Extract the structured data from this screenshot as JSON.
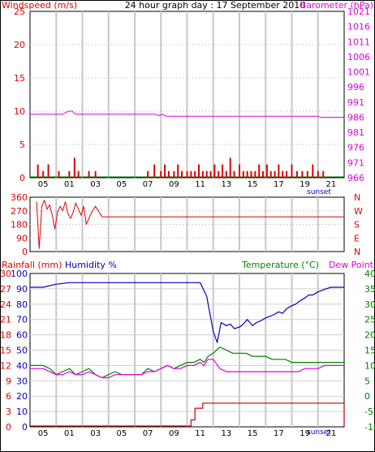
{
  "chart_data": [
    {
      "type": "line",
      "title": "24 hour graph day : 17 September 2010",
      "left_axis_label": "Windspeed (m/s)",
      "right_axis_label": "Barometer (hPa)",
      "left_ylim": [
        0,
        25
      ],
      "left_ticks": [
        "25",
        "20",
        "15",
        "10",
        "5",
        "0"
      ],
      "right_ylim": [
        966,
        1021
      ],
      "right_ticks": [
        "1021",
        "1016",
        "1011",
        "1006",
        "1001",
        "996",
        "991",
        "986",
        "981",
        "976",
        "971",
        "966"
      ],
      "x_ticks": [
        "05",
        "01",
        "03",
        "05",
        "07",
        "09",
        "11",
        "13",
        "15",
        "17",
        "19",
        "21"
      ],
      "annotation": "sunset",
      "grid": true,
      "colors": {
        "windspeed": "#e00000",
        "barometer": "#e000e0",
        "gust_line": "#008000",
        "text_left": "#e00000",
        "text_right": "#e000e0"
      },
      "series": [
        {
          "name": "Windspeed (m/s)",
          "kind": "bars",
          "x": [
            0.3,
            0.6,
            1.0,
            1.4,
            2.2,
            2.6,
            3.0,
            3.4,
            3.7,
            4.5,
            5.0,
            9.0,
            9.5,
            10.0,
            10.3,
            10.6,
            11.0,
            11.3,
            11.6,
            12.0,
            12.3,
            12.6,
            12.9,
            13.2,
            13.5,
            13.8,
            14.1,
            14.4,
            14.7,
            15.0,
            15.3,
            15.6,
            16.0,
            16.3,
            16.6,
            16.9,
            17.2,
            17.5,
            17.8,
            18.1,
            18.4,
            18.7,
            19.0,
            19.3,
            19.6,
            20.0,
            20.4,
            20.8,
            21.2,
            21.6,
            22.0,
            22.4
          ],
          "values": [
            0,
            2,
            1,
            2,
            1,
            0,
            1,
            3,
            1,
            1,
            1,
            1,
            2,
            1,
            2,
            1,
            1,
            2,
            1,
            1,
            1,
            1,
            2,
            1,
            1,
            1,
            2,
            1,
            2,
            1,
            3,
            1,
            2,
            1,
            1,
            1,
            1,
            2,
            1,
            2,
            1,
            1,
            2,
            1,
            1,
            2,
            1,
            1,
            1,
            2,
            1,
            1
          ]
        },
        {
          "name": "Barometer (hPa)",
          "kind": "line",
          "x": [
            0,
            0.3,
            0.3,
            2.5,
            2.8,
            3.0,
            3.2,
            3.5,
            9.5,
            9.9,
            10.1,
            10.4,
            22.0,
            22.2,
            24,
            24
          ],
          "values": [
            987,
            987,
            987,
            987,
            987.7,
            988,
            988,
            987,
            987,
            986.5,
            987,
            986.3,
            986.3,
            986,
            986,
            986
          ]
        }
      ]
    },
    {
      "type": "line",
      "left_axis_label": "",
      "left_ylim": [
        0,
        360
      ],
      "left_ticks": [
        "360",
        "270",
        "180",
        "90",
        "0"
      ],
      "right_ticks": [
        "N",
        "W",
        "S",
        "E",
        "N"
      ],
      "x_ticks": [],
      "grid": true,
      "colors": {
        "direction": "#e00000"
      },
      "series": [
        {
          "name": "",
          "kind": "line",
          "x": [
            0.5,
            0.7,
            0.9,
            1.1,
            1.3,
            1.5,
            1.7,
            1.9,
            2.1,
            2.3,
            2.5,
            2.7,
            2.9,
            3.1,
            3.3,
            3.5,
            3.7,
            3.9,
            4.1,
            4.3,
            4.5,
            4.7,
            5.0,
            5.5,
            6.0,
            6.5,
            7.0,
            7.5,
            8.0,
            9.0,
            10.0,
            10.8,
            11.2,
            11.6,
            12.0,
            12.4,
            12.8,
            13.2,
            13.6,
            14.0,
            14.4,
            14.8,
            15.2,
            15.6,
            16.0,
            16.4,
            16.8,
            17.2,
            17.6,
            18.0,
            18.4,
            18.8,
            19.2,
            19.6,
            20.0,
            20.4,
            20.8,
            21.2,
            21.6,
            22.0,
            22.4,
            22.8,
            23.2,
            23.6,
            24.0
          ],
          "values": [
            330,
            20,
            300,
            340,
            280,
            310,
            240,
            150,
            260,
            300,
            270,
            330,
            250,
            220,
            260,
            320,
            280,
            240,
            300,
            180,
            220,
            260,
            300,
            230,
            230,
            230,
            230,
            230,
            230,
            230,
            230,
            230,
            230,
            230,
            230,
            230,
            230,
            230,
            230,
            230,
            230,
            230,
            230,
            230,
            230,
            230,
            230,
            230,
            230,
            230,
            230,
            230,
            230,
            230,
            230,
            230,
            230,
            230,
            230,
            230,
            230,
            230,
            230,
            230,
            230
          ]
        }
      ]
    },
    {
      "type": "line",
      "left_axis_labels": [
        "Rainfall (mm)",
        "Humidity %"
      ],
      "right_axis_labels": [
        "Temperature (°C)",
        "Dew Point"
      ],
      "left_ticks_rain": [
        "30",
        "27",
        "24",
        "21",
        "18",
        "15",
        "12",
        "9",
        "6",
        "3",
        "0"
      ],
      "left_ticks_humidity": [
        "100",
        "90",
        "80",
        "70",
        "60",
        "50",
        "40",
        "30",
        "20",
        "10",
        "0"
      ],
      "right_ticks": [
        "40",
        "35",
        "30",
        "25",
        "20",
        "15",
        "10",
        "5",
        "0",
        "-5",
        "-10"
      ],
      "humidity_ylim": [
        0,
        100
      ],
      "temperature_ylim": [
        -10,
        40
      ],
      "rain_ylim": [
        0,
        30
      ],
      "x_ticks": [
        "05",
        "01",
        "03",
        "05",
        "07",
        "09",
        "11",
        "13",
        "15",
        "17",
        "19",
        "21"
      ],
      "annotation": "sunset",
      "grid": true,
      "colors": {
        "rain": "#c00000",
        "humidity": "#0000c0",
        "temperature": "#008000",
        "dewpoint": "#e000e0",
        "text_rain": "#e00000",
        "text_humidity": "#0000c0",
        "text_temperature": "#008000",
        "text_dewpoint": "#e000e0"
      },
      "series": [
        {
          "name": "Humidity %",
          "kind": "line",
          "x": [
            0,
            0.5,
            1.0,
            1.5,
            2.0,
            3.0,
            5.0,
            8.0,
            10.0,
            11.0,
            12.0,
            13.0,
            13.5,
            14.0,
            14.3,
            14.6,
            15.0,
            15.3,
            15.6,
            16.0,
            16.3,
            16.6,
            17.0,
            17.3,
            17.6,
            18.0,
            18.3,
            18.6,
            19.0,
            19.3,
            19.6,
            20.0,
            20.3,
            20.6,
            21.0,
            21.3,
            21.6,
            22.0,
            22.3,
            22.6,
            23.0,
            23.5,
            24.0
          ],
          "values": [
            91,
            91,
            91,
            92,
            93,
            94,
            94,
            94,
            94,
            94,
            94,
            94,
            85,
            62,
            55,
            68,
            66,
            67,
            64,
            65,
            67,
            70,
            66,
            68,
            69,
            71,
            72,
            73,
            75,
            74,
            77,
            79,
            80,
            82,
            84,
            86,
            86,
            88,
            89,
            90,
            91,
            91,
            91
          ]
        },
        {
          "name": "Temperature (°C)",
          "kind": "line",
          "x": [
            0,
            1.0,
            1.5,
            2.0,
            2.5,
            3.0,
            3.5,
            4.0,
            4.5,
            5.0,
            5.5,
            6.0,
            6.5,
            7.0,
            7.5,
            8.0,
            8.5,
            9.0,
            9.5,
            10.0,
            10.5,
            11.0,
            11.5,
            12.0,
            12.5,
            13.0,
            13.3,
            13.6,
            14.0,
            14.5,
            15.0,
            15.5,
            16.0,
            16.5,
            17.0,
            17.5,
            18.0,
            18.5,
            19.0,
            19.5,
            20.0,
            20.5,
            21.0,
            21.5,
            22.0,
            22.5,
            23.0,
            23.5,
            24.0
          ],
          "values": [
            10,
            10,
            9,
            7,
            8,
            9,
            7,
            8,
            9,
            7,
            6,
            7,
            8,
            7,
            7,
            7,
            7,
            9,
            8,
            9,
            10,
            9,
            10,
            11,
            11,
            12,
            11,
            13,
            14,
            16,
            15,
            14,
            14,
            14,
            13,
            13,
            13,
            12,
            12,
            12,
            11,
            11,
            11,
            11,
            11,
            11,
            11,
            11,
            11
          ]
        },
        {
          "name": "Dew Point",
          "kind": "line",
          "x": [
            0,
            1.0,
            1.5,
            2.0,
            2.5,
            3.0,
            3.5,
            4.0,
            4.5,
            5.0,
            5.5,
            6.0,
            6.5,
            7.0,
            7.5,
            8.0,
            8.5,
            9.0,
            9.5,
            10.0,
            10.5,
            11.0,
            11.5,
            12.0,
            12.5,
            13.0,
            13.3,
            13.6,
            14.0,
            14.5,
            15.0,
            15.5,
            16.0,
            16.5,
            17.0,
            17.5,
            18.0,
            18.5,
            19.0,
            19.5,
            20.0,
            20.5,
            21.0,
            21.5,
            22.0,
            22.5,
            23.0,
            23.5,
            24.0
          ],
          "values": [
            9,
            9,
            8,
            7,
            7,
            8,
            7,
            7,
            8,
            7,
            6,
            6,
            7,
            7,
            7,
            7,
            7,
            8,
            8,
            9,
            10,
            9,
            9,
            10,
            10,
            11,
            10,
            12,
            12,
            9,
            8,
            8,
            8,
            8,
            8,
            8,
            8,
            8,
            8,
            8,
            8,
            8,
            9,
            9,
            9,
            10,
            10,
            10,
            10
          ]
        },
        {
          "name": "Rainfall (mm)",
          "kind": "step",
          "x": [
            0,
            12.3,
            12.3,
            12.6,
            12.6,
            13.2,
            13.2,
            14.0,
            14.0,
            24.0,
            24.0
          ],
          "values": [
            0,
            0,
            1.2,
            1.2,
            3.5,
            3.5,
            4.5,
            4.5,
            4.5,
            4.5,
            0
          ]
        }
      ]
    }
  ]
}
